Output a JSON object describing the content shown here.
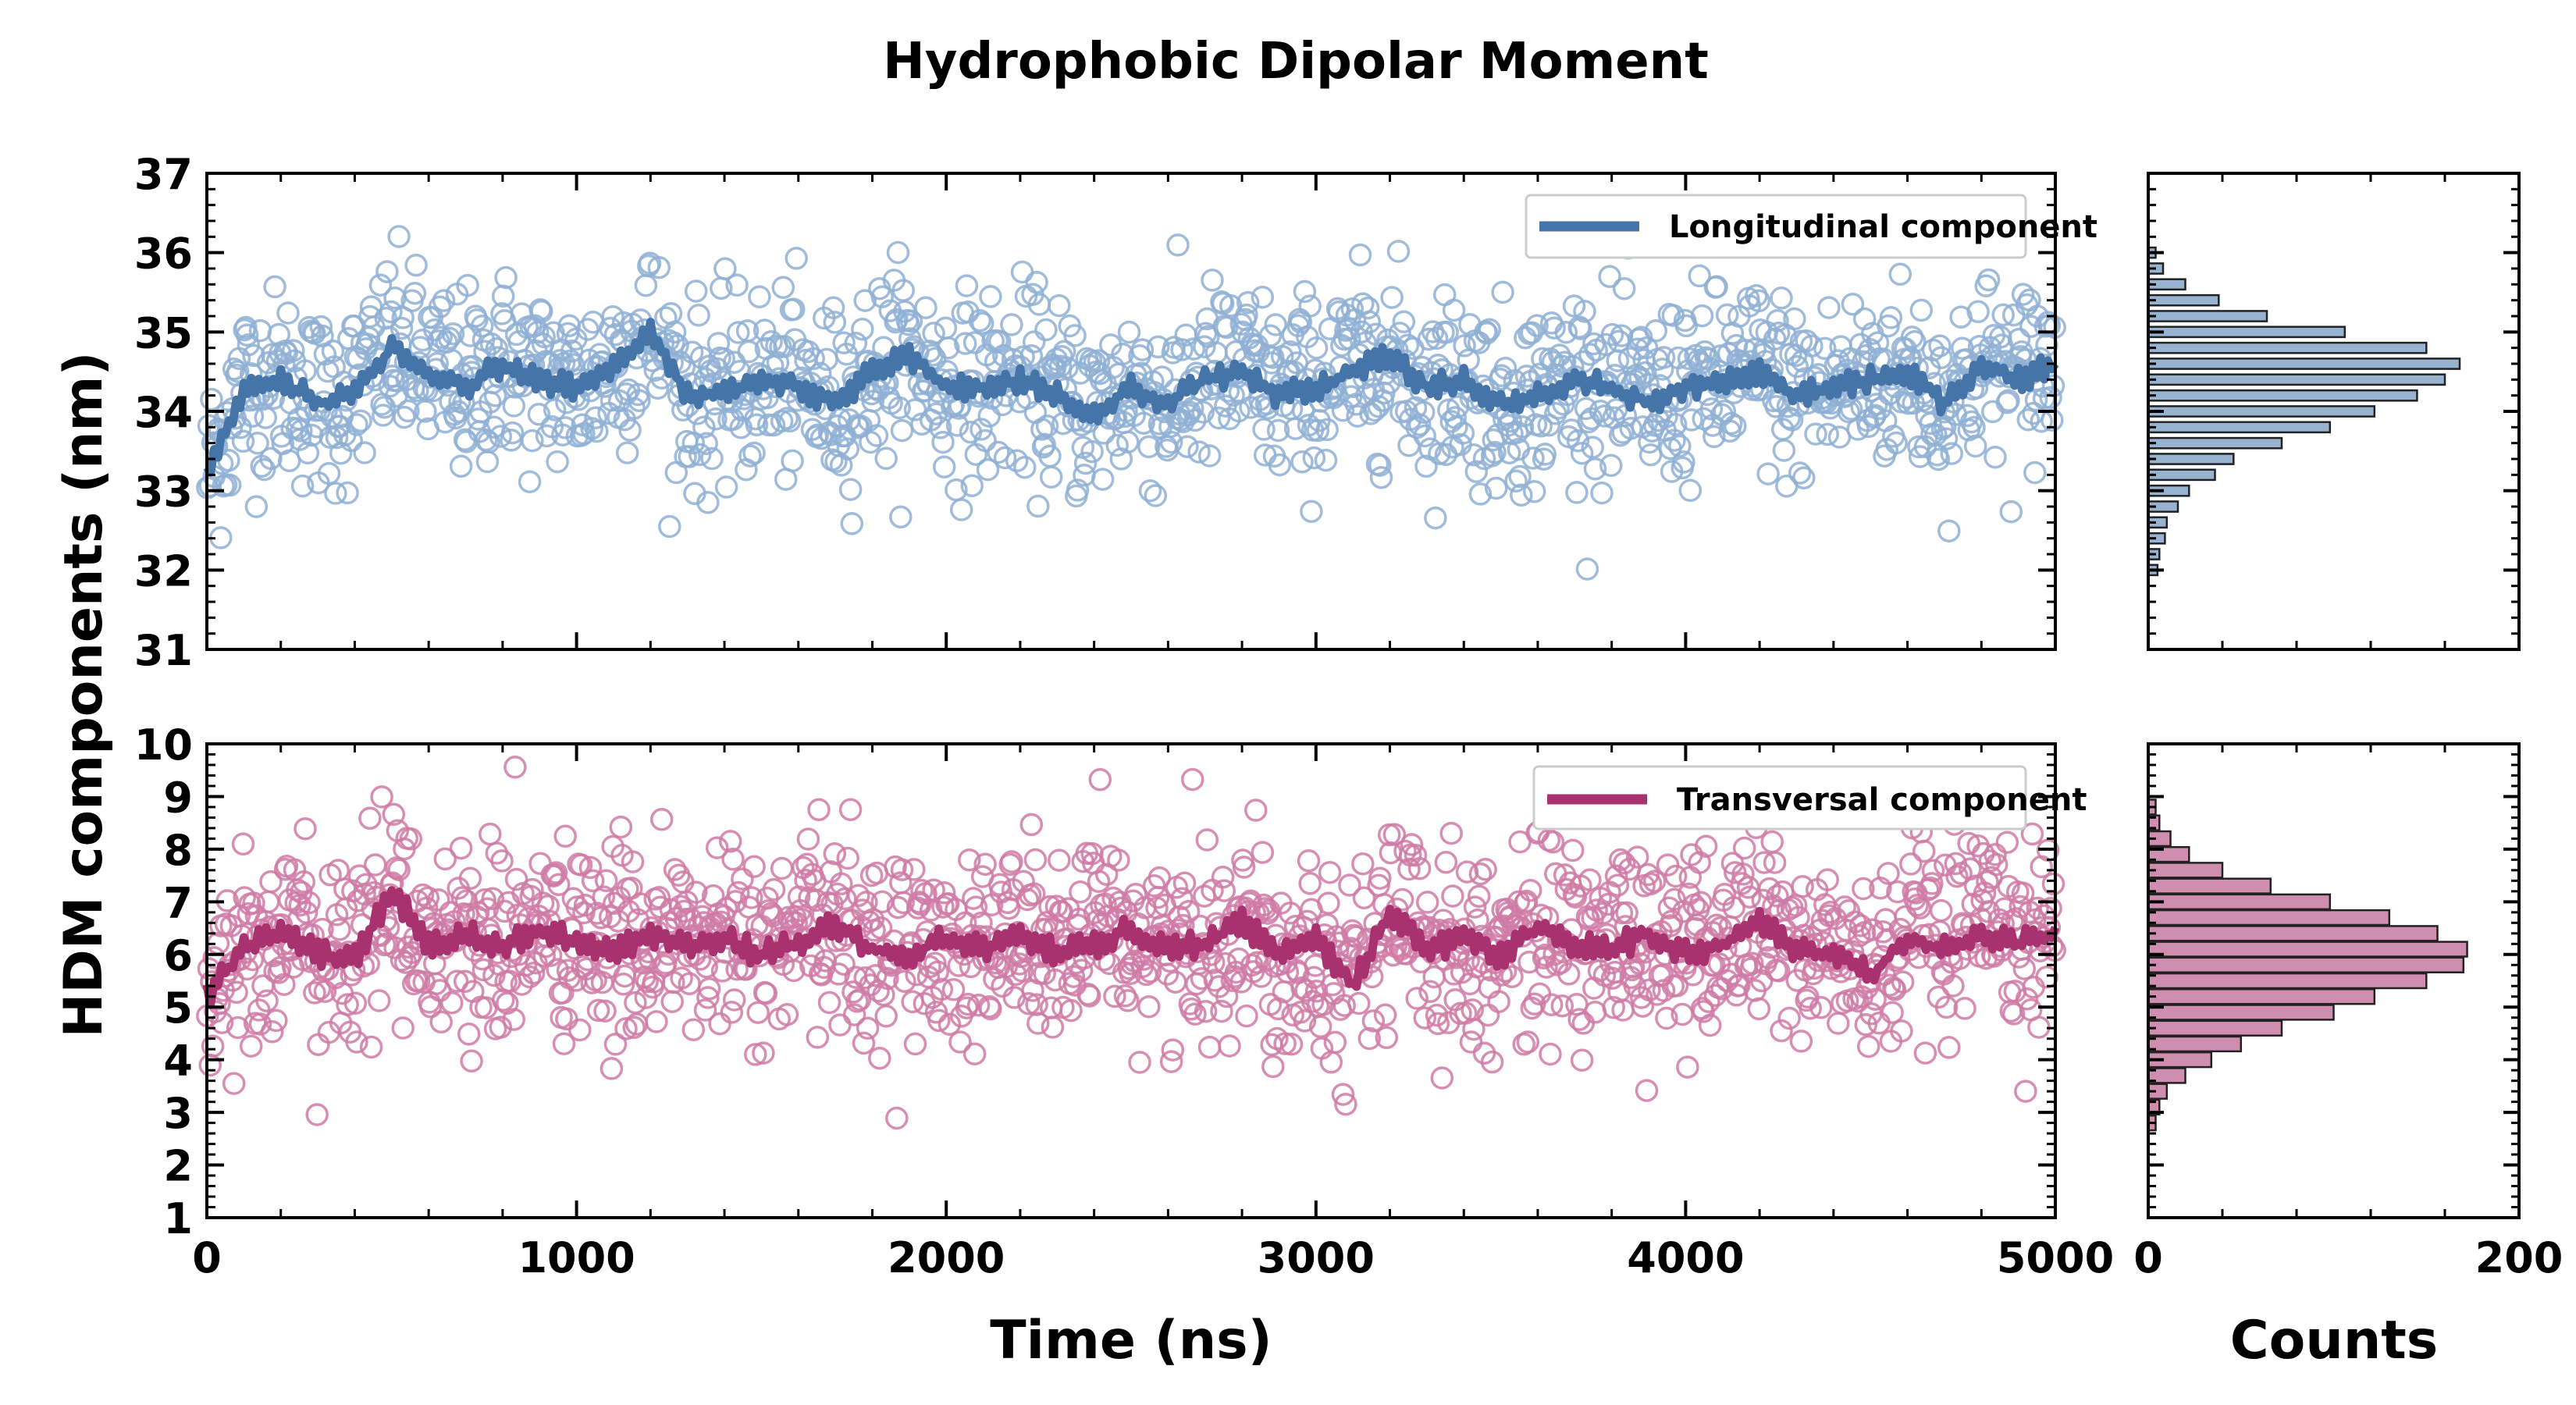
{
  "chart_data": [
    {
      "type": "scatter",
      "panel": "top-timeseries",
      "title": "Hydrophobic Dipolar Moment",
      "ylabel": "HDM components (nm)",
      "xlim": [
        0,
        5000
      ],
      "ylim": [
        31,
        37
      ],
      "yticks": [
        31,
        32,
        33,
        34,
        35,
        36,
        37
      ],
      "legend_placement": "top-right",
      "series": [
        {
          "name": "Longitudinal component",
          "color": "#4474a8",
          "point_color": "#8fb0d3",
          "marker": "open-circle",
          "mean": 34.3,
          "std": 0.65,
          "n_points": 1400,
          "running_average": [
            {
              "x": 0,
              "y": 33.2
            },
            {
              "x": 100,
              "y": 34.3
            },
            {
              "x": 200,
              "y": 34.4
            },
            {
              "x": 300,
              "y": 34.1
            },
            {
              "x": 400,
              "y": 34.2
            },
            {
              "x": 500,
              "y": 34.8
            },
            {
              "x": 600,
              "y": 34.5
            },
            {
              "x": 700,
              "y": 34.3
            },
            {
              "x": 800,
              "y": 34.6
            },
            {
              "x": 900,
              "y": 34.4
            },
            {
              "x": 1000,
              "y": 34.3
            },
            {
              "x": 1100,
              "y": 34.6
            },
            {
              "x": 1200,
              "y": 35.0
            },
            {
              "x": 1300,
              "y": 34.2
            },
            {
              "x": 1400,
              "y": 34.2
            },
            {
              "x": 1500,
              "y": 34.4
            },
            {
              "x": 1600,
              "y": 34.3
            },
            {
              "x": 1700,
              "y": 34.1
            },
            {
              "x": 1800,
              "y": 34.5
            },
            {
              "x": 1900,
              "y": 34.7
            },
            {
              "x": 2000,
              "y": 34.3
            },
            {
              "x": 2100,
              "y": 34.3
            },
            {
              "x": 2200,
              "y": 34.4
            },
            {
              "x": 2300,
              "y": 34.2
            },
            {
              "x": 2400,
              "y": 34.0
            },
            {
              "x": 2500,
              "y": 34.3
            },
            {
              "x": 2600,
              "y": 34.1
            },
            {
              "x": 2700,
              "y": 34.4
            },
            {
              "x": 2800,
              "y": 34.5
            },
            {
              "x": 2900,
              "y": 34.2
            },
            {
              "x": 3000,
              "y": 34.3
            },
            {
              "x": 3100,
              "y": 34.5
            },
            {
              "x": 3200,
              "y": 34.7
            },
            {
              "x": 3300,
              "y": 34.3
            },
            {
              "x": 3400,
              "y": 34.4
            },
            {
              "x": 3500,
              "y": 34.1
            },
            {
              "x": 3600,
              "y": 34.2
            },
            {
              "x": 3700,
              "y": 34.4
            },
            {
              "x": 3800,
              "y": 34.3
            },
            {
              "x": 3900,
              "y": 34.1
            },
            {
              "x": 4000,
              "y": 34.3
            },
            {
              "x": 4100,
              "y": 34.4
            },
            {
              "x": 4200,
              "y": 34.5
            },
            {
              "x": 4300,
              "y": 34.2
            },
            {
              "x": 4400,
              "y": 34.3
            },
            {
              "x": 4500,
              "y": 34.4
            },
            {
              "x": 4600,
              "y": 34.5
            },
            {
              "x": 4700,
              "y": 34.1
            },
            {
              "x": 4800,
              "y": 34.6
            },
            {
              "x": 4900,
              "y": 34.4
            },
            {
              "x": 5000,
              "y": 34.6
            }
          ]
        }
      ]
    },
    {
      "type": "scatter",
      "panel": "bottom-timeseries",
      "xlabel": "Time (ns)",
      "xlim": [
        0,
        5000
      ],
      "xticks": [
        0,
        1000,
        2000,
        3000,
        4000,
        5000
      ],
      "ylim": [
        1,
        10
      ],
      "yticks": [
        1,
        2,
        3,
        4,
        5,
        6,
        7,
        8,
        9,
        10
      ],
      "legend_placement": "top-right",
      "series": [
        {
          "name": "Transversal component",
          "color": "#a83270",
          "point_color": "#cf7ba6",
          "marker": "open-circle",
          "mean": 6.2,
          "std": 1.05,
          "n_points": 1400,
          "running_average": [
            {
              "x": 0,
              "y": 5.2
            },
            {
              "x": 100,
              "y": 6.1
            },
            {
              "x": 200,
              "y": 6.4
            },
            {
              "x": 300,
              "y": 6.0
            },
            {
              "x": 400,
              "y": 5.9
            },
            {
              "x": 500,
              "y": 7.2
            },
            {
              "x": 600,
              "y": 6.2
            },
            {
              "x": 700,
              "y": 6.4
            },
            {
              "x": 800,
              "y": 6.1
            },
            {
              "x": 900,
              "y": 6.5
            },
            {
              "x": 1000,
              "y": 6.2
            },
            {
              "x": 1100,
              "y": 6.0
            },
            {
              "x": 1200,
              "y": 6.4
            },
            {
              "x": 1300,
              "y": 6.1
            },
            {
              "x": 1400,
              "y": 6.3
            },
            {
              "x": 1500,
              "y": 6.0
            },
            {
              "x": 1600,
              "y": 6.2
            },
            {
              "x": 1700,
              "y": 6.6
            },
            {
              "x": 1800,
              "y": 6.1
            },
            {
              "x": 1900,
              "y": 6.0
            },
            {
              "x": 2000,
              "y": 6.3
            },
            {
              "x": 2100,
              "y": 6.1
            },
            {
              "x": 2200,
              "y": 6.4
            },
            {
              "x": 2300,
              "y": 6.0
            },
            {
              "x": 2400,
              "y": 6.2
            },
            {
              "x": 2500,
              "y": 6.5
            },
            {
              "x": 2600,
              "y": 6.1
            },
            {
              "x": 2700,
              "y": 6.2
            },
            {
              "x": 2800,
              "y": 6.6
            },
            {
              "x": 2900,
              "y": 6.0
            },
            {
              "x": 3000,
              "y": 6.3
            },
            {
              "x": 3100,
              "y": 5.4
            },
            {
              "x": 3200,
              "y": 6.8
            },
            {
              "x": 3300,
              "y": 6.1
            },
            {
              "x": 3400,
              "y": 6.3
            },
            {
              "x": 3500,
              "y": 6.0
            },
            {
              "x": 3600,
              "y": 6.5
            },
            {
              "x": 3700,
              "y": 6.2
            },
            {
              "x": 3800,
              "y": 6.1
            },
            {
              "x": 3900,
              "y": 6.4
            },
            {
              "x": 4000,
              "y": 6.0
            },
            {
              "x": 4100,
              "y": 6.2
            },
            {
              "x": 4200,
              "y": 6.6
            },
            {
              "x": 4300,
              "y": 6.1
            },
            {
              "x": 4400,
              "y": 6.0
            },
            {
              "x": 4500,
              "y": 5.6
            },
            {
              "x": 4600,
              "y": 6.3
            },
            {
              "x": 4700,
              "y": 6.1
            },
            {
              "x": 4800,
              "y": 6.4
            },
            {
              "x": 4900,
              "y": 6.2
            },
            {
              "x": 5000,
              "y": 6.4
            }
          ]
        }
      ]
    },
    {
      "type": "bar",
      "orientation": "horizontal",
      "panel": "top-histogram",
      "xlim": [
        0,
        200
      ],
      "ylim": [
        31,
        37
      ],
      "color": "#4474a8",
      "bin_width": 0.13,
      "bins": [
        {
          "y": 32.0,
          "count": 5
        },
        {
          "y": 32.2,
          "count": 6
        },
        {
          "y": 32.4,
          "count": 9
        },
        {
          "y": 32.6,
          "count": 10
        },
        {
          "y": 32.8,
          "count": 16
        },
        {
          "y": 33.0,
          "count": 22
        },
        {
          "y": 33.2,
          "count": 36
        },
        {
          "y": 33.4,
          "count": 46
        },
        {
          "y": 33.6,
          "count": 72
        },
        {
          "y": 33.8,
          "count": 98
        },
        {
          "y": 34.0,
          "count": 122
        },
        {
          "y": 34.2,
          "count": 145
        },
        {
          "y": 34.4,
          "count": 160
        },
        {
          "y": 34.6,
          "count": 168
        },
        {
          "y": 34.8,
          "count": 150
        },
        {
          "y": 35.0,
          "count": 106
        },
        {
          "y": 35.2,
          "count": 64
        },
        {
          "y": 35.4,
          "count": 38
        },
        {
          "y": 35.6,
          "count": 20
        },
        {
          "y": 35.8,
          "count": 8
        },
        {
          "y": 36.0,
          "count": 4
        }
      ]
    },
    {
      "type": "bar",
      "orientation": "horizontal",
      "panel": "bottom-histogram",
      "xlabel": "Counts",
      "xlim": [
        0,
        200
      ],
      "xticks": [
        0,
        200
      ],
      "ylim": [
        1,
        10
      ],
      "color": "#a83270",
      "bin_width": 0.28,
      "bins": [
        {
          "y": 2.8,
          "count": 4
        },
        {
          "y": 3.1,
          "count": 6
        },
        {
          "y": 3.4,
          "count": 10
        },
        {
          "y": 3.7,
          "count": 20
        },
        {
          "y": 4.0,
          "count": 34
        },
        {
          "y": 4.3,
          "count": 50
        },
        {
          "y": 4.6,
          "count": 72
        },
        {
          "y": 4.9,
          "count": 100
        },
        {
          "y": 5.2,
          "count": 122
        },
        {
          "y": 5.5,
          "count": 150
        },
        {
          "y": 5.8,
          "count": 170
        },
        {
          "y": 6.1,
          "count": 172
        },
        {
          "y": 6.4,
          "count": 156
        },
        {
          "y": 6.7,
          "count": 130
        },
        {
          "y": 7.0,
          "count": 98
        },
        {
          "y": 7.3,
          "count": 66
        },
        {
          "y": 7.6,
          "count": 40
        },
        {
          "y": 7.9,
          "count": 22
        },
        {
          "y": 8.2,
          "count": 12
        },
        {
          "y": 8.5,
          "count": 6
        },
        {
          "y": 8.8,
          "count": 4
        }
      ]
    }
  ]
}
